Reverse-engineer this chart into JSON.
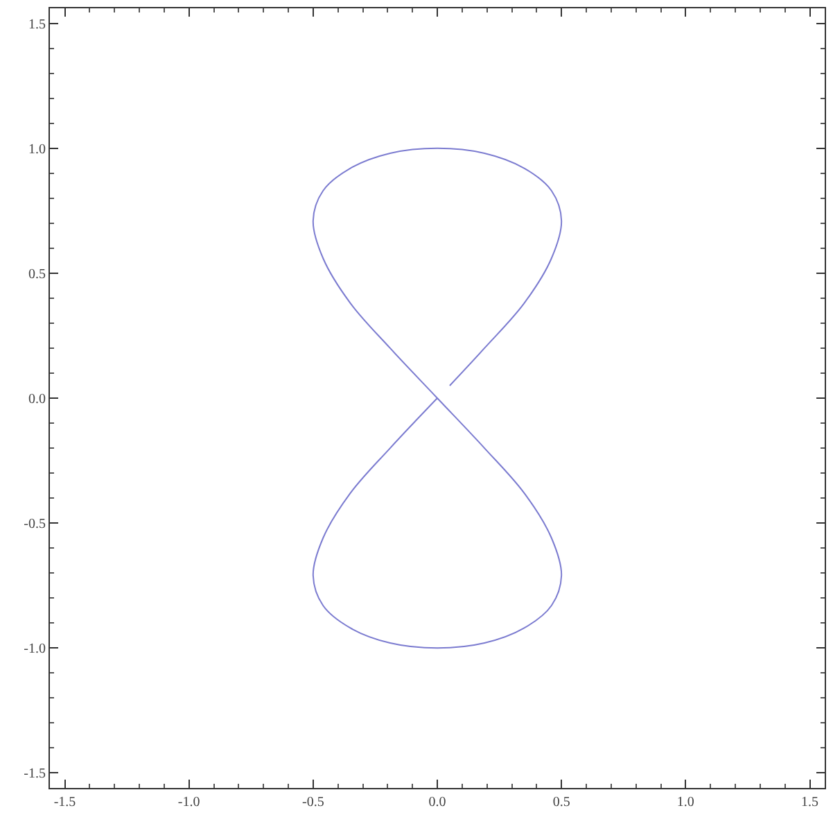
{
  "chart_data": {
    "type": "line",
    "color": "#7b7bd0",
    "marker": "none",
    "line_style": "solid",
    "grid": false,
    "legend": false,
    "x": [
      0.05,
      0.19,
      0.35,
      0.46,
      0.5,
      0.46,
      0.35,
      0.19,
      0,
      -0.19,
      -0.35,
      -0.46,
      -0.5,
      -0.46,
      -0.35,
      -0.19,
      0,
      0.19,
      0.35,
      0.46,
      0.5,
      0.46,
      0.35,
      0.19,
      0,
      -0.19,
      -0.35,
      -0.46,
      -0.5,
      -0.46,
      -0.35,
      -0.19,
      0
    ],
    "values": [
      0.05,
      0.2,
      0.38,
      0.56,
      0.71,
      0.83,
      0.92,
      0.98,
      1,
      0.98,
      0.92,
      0.83,
      0.71,
      0.56,
      0.38,
      0.2,
      0,
      -0.2,
      -0.38,
      -0.56,
      -0.71,
      -0.83,
      -0.92,
      -0.98,
      -1,
      -0.98,
      -0.92,
      -0.83,
      -0.71,
      -0.56,
      -0.38,
      -0.2,
      0
    ],
    "xlim": [
      -1.56,
      1.56
    ],
    "ylim": [
      -1.56,
      1.56
    ],
    "xticks": [
      {
        "value": -1.5,
        "label": "-1.5"
      },
      {
        "value": -1,
        "label": "-1.0"
      },
      {
        "value": -0.5,
        "label": "-0.5"
      },
      {
        "value": 0,
        "label": "0.0"
      },
      {
        "value": 0.5,
        "label": "0.5"
      },
      {
        "value": 1,
        "label": "1.0"
      },
      {
        "value": 1.5,
        "label": "1.5"
      }
    ],
    "yticks": [
      {
        "value": -1.5,
        "label": "-1.5"
      },
      {
        "value": -1,
        "label": "-1.0"
      },
      {
        "value": -0.5,
        "label": "-0.5"
      },
      {
        "value": 0,
        "label": "0.0"
      },
      {
        "value": 0.5,
        "label": "0.5"
      },
      {
        "value": 1,
        "label": "1.0"
      },
      {
        "value": 1.5,
        "label": "1.5"
      }
    ]
  }
}
